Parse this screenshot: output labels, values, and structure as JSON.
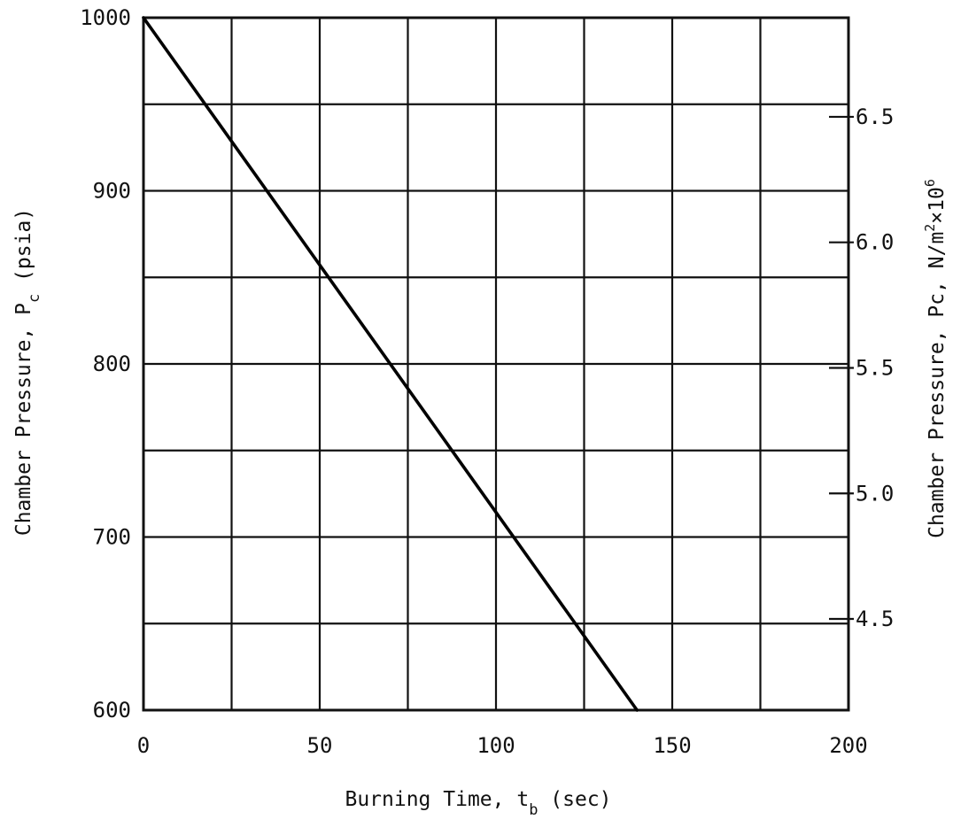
{
  "chart_data": {
    "type": "line",
    "x_axis": {
      "label_main": "Burning Time, t",
      "label_sub": "b",
      "label_unit": " (sec)",
      "range": [
        0,
        200
      ],
      "tick_values": [
        0,
        50,
        100,
        150,
        200
      ],
      "tick_labels": [
        "0",
        "50",
        "100",
        "150",
        "200"
      ],
      "grid_step": 25
    },
    "y_axis_left": {
      "label_main": "Chamber Pressure, P",
      "label_sub": "c",
      "label_unit": " (psia)",
      "range": [
        600,
        1000
      ],
      "tick_values": [
        600,
        700,
        800,
        900,
        1000
      ],
      "tick_labels": [
        "600",
        "700",
        "800",
        "900",
        "1000"
      ],
      "grid_step": 50
    },
    "y_axis_right": {
      "label_main": "Chamber Pressure, Pc, N/m",
      "label_sup1": "2",
      "label_mid": "×10",
      "label_sup2": "6",
      "tick_values": [
        4.5,
        5.0,
        5.5,
        6.0,
        6.5
      ],
      "tick_labels": [
        "4.5",
        "5.0",
        "5.5",
        "6.0",
        "6.5"
      ],
      "psia_per_unit": 145.038
    },
    "grid": true,
    "series": [
      {
        "x": [
          0,
          140
        ],
        "y": [
          1000,
          600
        ]
      }
    ]
  }
}
